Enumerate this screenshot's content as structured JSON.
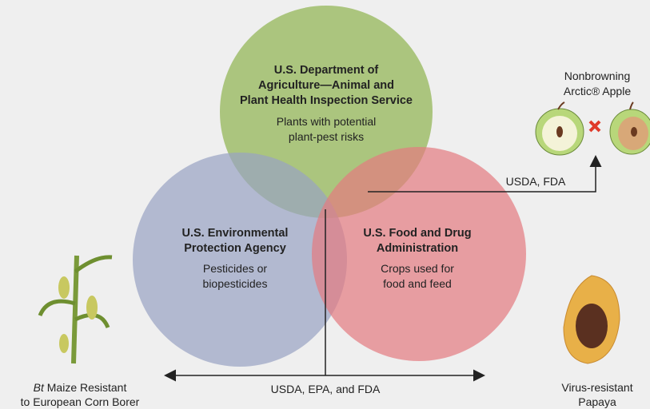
{
  "agencies": [
    {
      "name_lines": [
        "U.S. Department  of",
        "Agriculture—Animal and",
        "Plant Health Inspection Service"
      ],
      "description_lines": [
        "Plants with potential",
        "plant-pest risks"
      ]
    },
    {
      "name_lines": [
        "U.S. Environmental",
        "Protection Agency"
      ],
      "description_lines": [
        "Pesticides or",
        "biopesticides"
      ]
    },
    {
      "name_lines": [
        "U.S. Food and Drug",
        "Administration"
      ],
      "description_lines": [
        "Crops used for",
        "food and feed"
      ]
    }
  ],
  "arrows": {
    "usda_fda": "USDA, FDA",
    "all": "USDA, EPA, and FDA"
  },
  "examples": {
    "apple": {
      "lines": [
        "Nonbrowning",
        "Arctic® Apple"
      ]
    },
    "maize": {
      "italic": "Bt",
      "rest": " Maize Resistant",
      "line2": "to European Corn Borer"
    },
    "papaya": {
      "lines": [
        "Virus-resistant",
        "Papaya"
      ]
    }
  }
}
